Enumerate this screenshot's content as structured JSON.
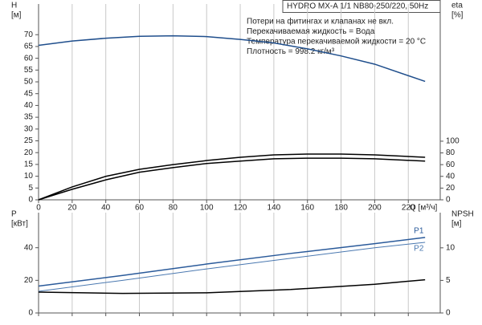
{
  "chart_data": [
    {
      "type": "line",
      "title": "HYDRO MX-A 1/1 NB80-250/220, 50Hz",
      "annotations": [
        "Потери на фитингах и клапанах не вкл.",
        "Перекачиваемая жидкость = Вода",
        "Температура перекачиваемой жидкости = 20 °C",
        "Плотность = 998.2 кг/м³"
      ],
      "ylabel": [
        "H",
        "[м]"
      ],
      "y2label": [
        "eta",
        "[%]"
      ],
      "xlabel": "Q [м³/ч]",
      "x": [
        0,
        20,
        40,
        60,
        80,
        100,
        120,
        140,
        160,
        180,
        200,
        230
      ],
      "xlim": [
        0,
        239
      ],
      "xticks": [
        0,
        20,
        40,
        60,
        80,
        100,
        120,
        140,
        160,
        180,
        200,
        220
      ],
      "ylim": [
        0,
        83
      ],
      "yticks": [
        0,
        5,
        10,
        15,
        20,
        25,
        30,
        35,
        40,
        45,
        50,
        55,
        60,
        65,
        70
      ],
      "y2lim": [
        0,
        334
      ],
      "y2ticks": [
        0,
        20,
        40,
        60,
        80,
        100
      ],
      "grid": true,
      "series": [
        {
          "color": "#1f4e8c",
          "values": [
            65.5,
            67.3,
            68.5,
            69.3,
            69.5,
            69.2,
            68,
            66.5,
            64,
            61,
            57.5,
            50.2
          ]
        },
        {
          "color": "#000000",
          "axis": "y2",
          "values": [
            0,
            22,
            40,
            52,
            60,
            67,
            72.6,
            76.7,
            78,
            78,
            76.7,
            72.6
          ]
        },
        {
          "color": "#000000",
          "axis": "y2",
          "values": [
            0,
            18,
            34,
            47,
            55,
            62,
            66,
            70,
            71,
            71,
            70,
            66
          ]
        }
      ]
    },
    {
      "type": "line",
      "ylabel": [
        "P",
        "[кВт]"
      ],
      "y2label": [
        "NPSH",
        "[м]"
      ],
      "x": [
        0,
        50,
        100,
        150,
        200,
        230
      ],
      "xlim": [
        0,
        239
      ],
      "ylim": [
        0,
        61.5
      ],
      "yticks": [
        0,
        20,
        40
      ],
      "y2lim": [
        0,
        15.4
      ],
      "y2ticks": [
        0,
        5,
        10
      ],
      "grid": true,
      "series": [
        {
          "name": "P1",
          "color": "#2a5a9a",
          "values": [
            16.5,
            23,
            30,
            36.5,
            42.5,
            46.3
          ]
        },
        {
          "name": "P2",
          "color": "#4a78b0",
          "values": [
            13.3,
            20,
            27,
            33.5,
            40,
            43.3
          ]
        },
        {
          "color": "#000000",
          "axis": "y2",
          "values": [
            3.2,
            3,
            3.1,
            3.6,
            4.4,
            5.1
          ]
        }
      ]
    }
  ]
}
